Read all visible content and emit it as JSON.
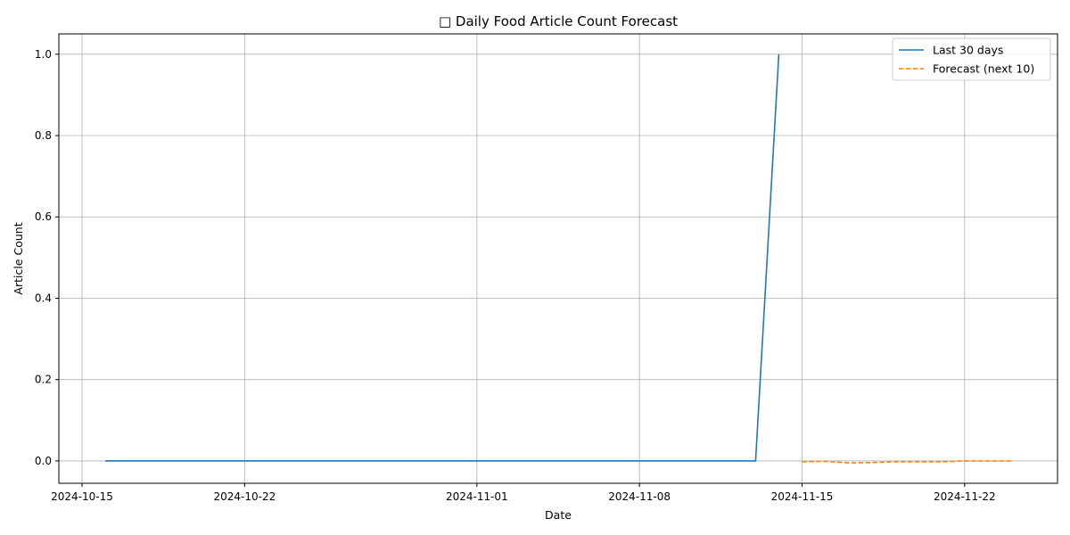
{
  "chart_data": {
    "type": "line",
    "title": "□ Daily Food Article Count Forecast",
    "xlabel": "Date",
    "ylabel": "Article Count",
    "xlim": [
      "2024-10-14",
      "2024-11-26"
    ],
    "ylim": [
      -0.055,
      1.05
    ],
    "x_ticks": [
      "2024-10-15",
      "2024-10-22",
      "2024-11-01",
      "2024-11-08",
      "2024-11-15",
      "2024-11-22"
    ],
    "y_ticks": [
      0.0,
      0.2,
      0.4,
      0.6,
      0.8,
      1.0
    ],
    "y_tick_labels": [
      "0.0",
      "0.2",
      "0.4",
      "0.6",
      "0.8",
      "1.0"
    ],
    "grid": true,
    "legend_position": "top-right",
    "series": [
      {
        "name": "Last 30 days",
        "color": "#1f77b4",
        "style": "solid",
        "x": [
          "2024-10-16",
          "2024-10-17",
          "2024-10-18",
          "2024-10-19",
          "2024-10-20",
          "2024-10-21",
          "2024-10-22",
          "2024-10-23",
          "2024-10-24",
          "2024-10-25",
          "2024-10-26",
          "2024-10-27",
          "2024-10-28",
          "2024-10-29",
          "2024-10-30",
          "2024-10-31",
          "2024-11-01",
          "2024-11-02",
          "2024-11-03",
          "2024-11-04",
          "2024-11-05",
          "2024-11-06",
          "2024-11-07",
          "2024-11-08",
          "2024-11-09",
          "2024-11-10",
          "2024-11-11",
          "2024-11-12",
          "2024-11-13",
          "2024-11-14"
        ],
        "values": [
          0,
          0,
          0,
          0,
          0,
          0,
          0,
          0,
          0,
          0,
          0,
          0,
          0,
          0,
          0,
          0,
          0,
          0,
          0,
          0,
          0,
          0,
          0,
          0,
          0,
          0,
          0,
          0,
          0,
          1
        ]
      },
      {
        "name": "Forecast (next 10)",
        "color": "#ff7f0e",
        "style": "dashed",
        "x": [
          "2024-11-15",
          "2024-11-16",
          "2024-11-17",
          "2024-11-18",
          "2024-11-19",
          "2024-11-20",
          "2024-11-21",
          "2024-11-22",
          "2024-11-23",
          "2024-11-24"
        ],
        "values": [
          -0.002,
          -0.001,
          -0.005,
          -0.004,
          -0.002,
          -0.002,
          -0.002,
          0.0,
          0.0,
          0.0
        ]
      }
    ]
  }
}
